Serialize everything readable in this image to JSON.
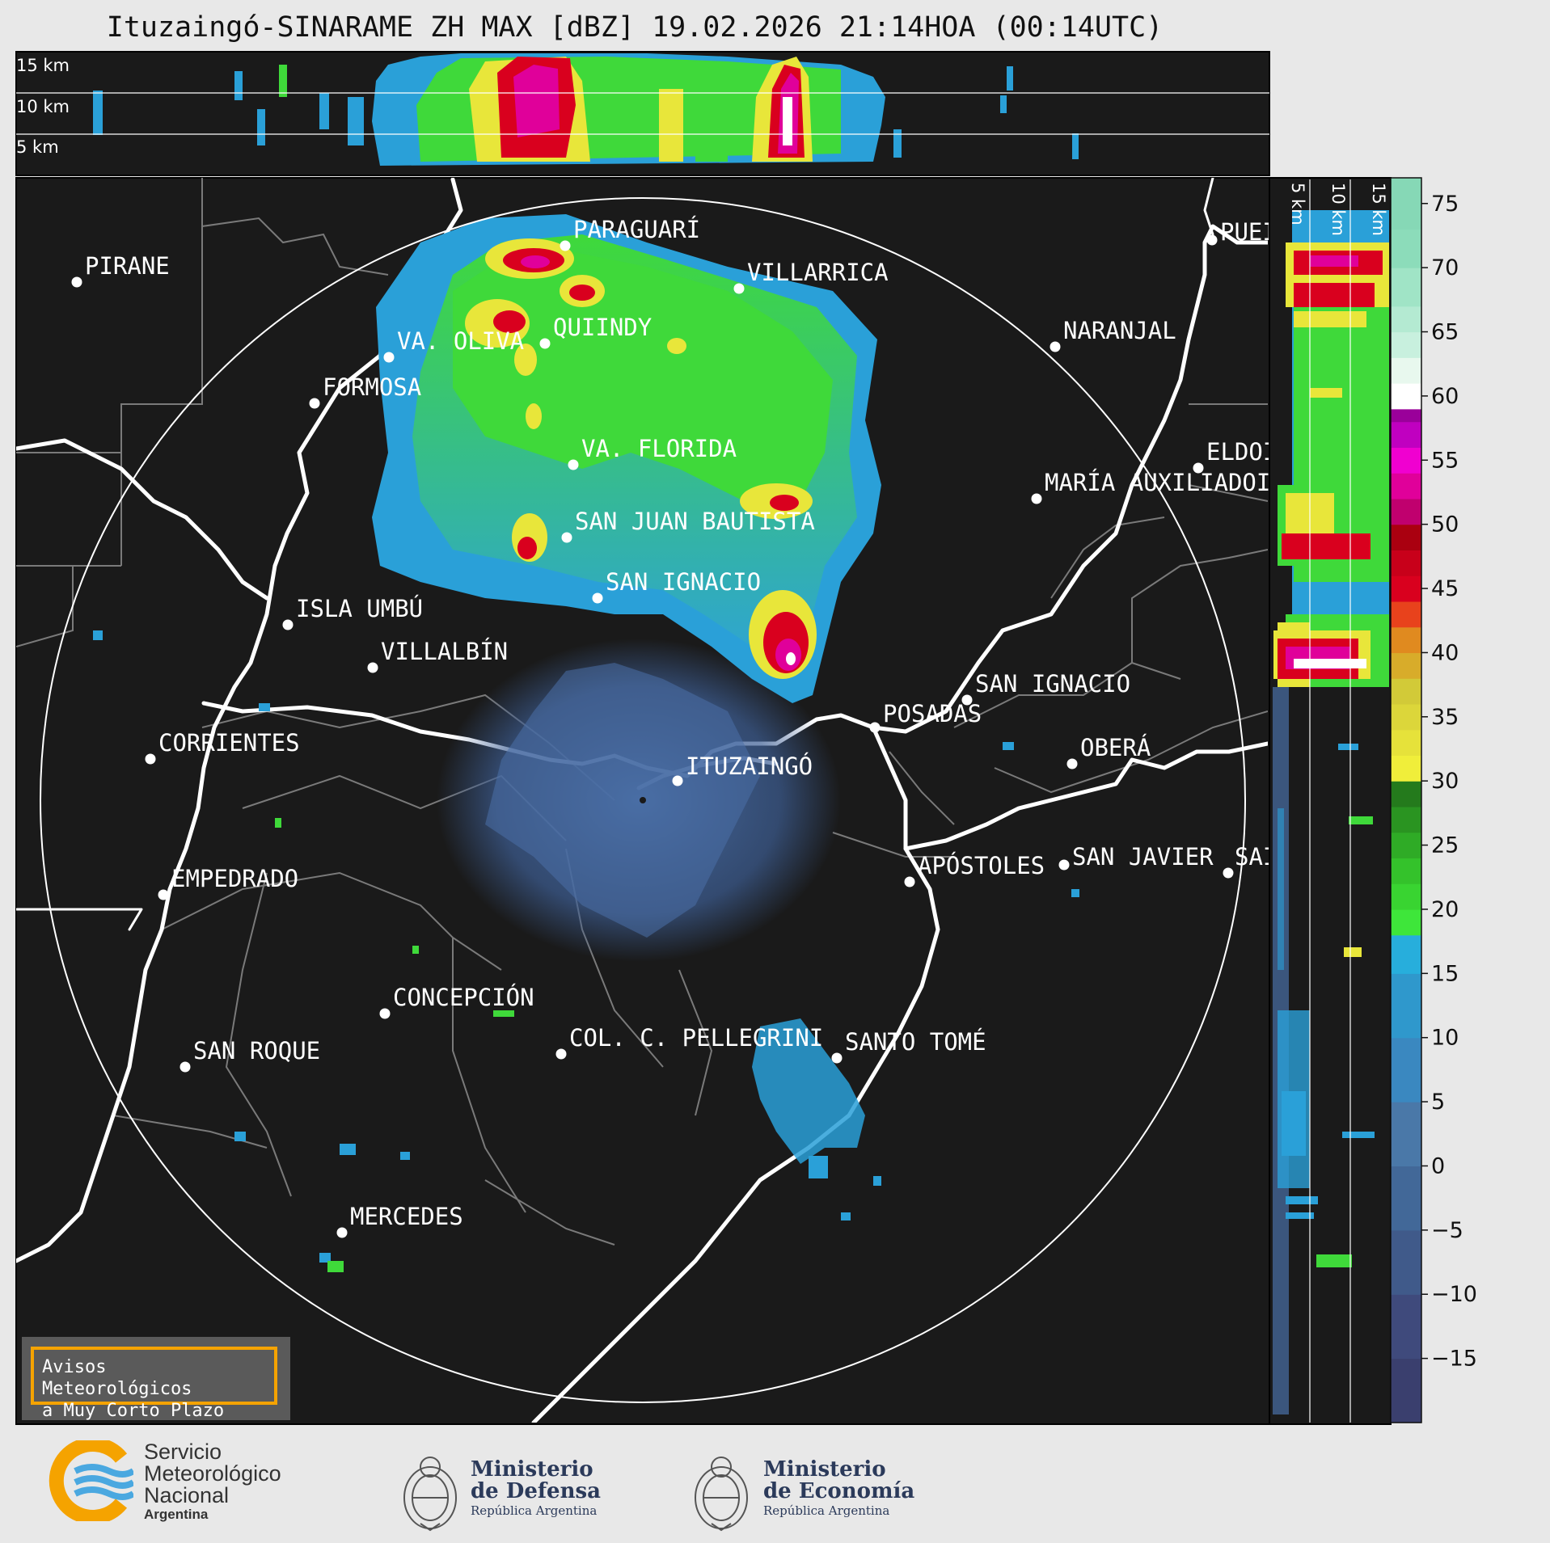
{
  "title": "Ituzaingó-SINARAME ZH MAX [dBZ] 19.02.2026 21:14HOA (00:14UTC)",
  "top_panel": {
    "heights": [
      "15 km",
      "10 km",
      "5 km"
    ]
  },
  "side_panel": {
    "heights": [
      "5 km",
      "10 km",
      "15 km"
    ]
  },
  "colorbar": {
    "ticks": [
      "75",
      "70",
      "65",
      "60",
      "55",
      "50",
      "45",
      "40",
      "35",
      "30",
      "25",
      "20",
      "15",
      "10",
      "5",
      "0",
      "−5",
      "−10",
      "−15"
    ]
  },
  "cities": [
    {
      "name": "PARAGUARÍ"
    },
    {
      "name": "VILLARRICA"
    },
    {
      "name": "PIRANE"
    },
    {
      "name": "QUIINDY"
    },
    {
      "name": "VA. OLIVA"
    },
    {
      "name": "FORMOSA"
    },
    {
      "name": "NARANJAL"
    },
    {
      "name": "PUEI"
    },
    {
      "name": "VA. FLORIDA"
    },
    {
      "name": "ELDOI"
    },
    {
      "name": "MARÍA AUXILIADOI"
    },
    {
      "name": "SAN JUAN BAUTISTA"
    },
    {
      "name": "SAN IGNACIO"
    },
    {
      "name": "ISLA UMBÚ"
    },
    {
      "name": "VILLALBÍN"
    },
    {
      "name": "SAN IGNACIO"
    },
    {
      "name": "POSADAS"
    },
    {
      "name": "CORRIENTES"
    },
    {
      "name": "ITUZAINGÓ"
    },
    {
      "name": "OBERÁ"
    },
    {
      "name": "EMPEDRADO"
    },
    {
      "name": "APÓSTOLES"
    },
    {
      "name": "SAN JAVIER"
    },
    {
      "name": "SAI"
    },
    {
      "name": "CONCEPCIÓN"
    },
    {
      "name": "COL. C. PELLEGRINI"
    },
    {
      "name": "SANTO TOMÉ"
    },
    {
      "name": "SAN ROQUE"
    },
    {
      "name": "MERCEDES"
    }
  ],
  "warning": {
    "line1": "Avisos Meteorológicos",
    "line2": "a Muy Corto Plazo"
  },
  "logos": {
    "smn": {
      "line1": "Servicio",
      "line2": "Meteorológico",
      "line3": "Nacional",
      "line4": "Argentina"
    },
    "defensa": {
      "line1": "Ministerio",
      "line2": "de Defensa",
      "line3": "República Argentina"
    },
    "economia": {
      "line1": "Ministerio",
      "line2": "de Economía",
      "line3": "República Argentina"
    }
  },
  "colors": {
    "panel_bg": "#1a1a1a",
    "page_bg": "#e8e8e8",
    "accent": "#f5a300"
  }
}
